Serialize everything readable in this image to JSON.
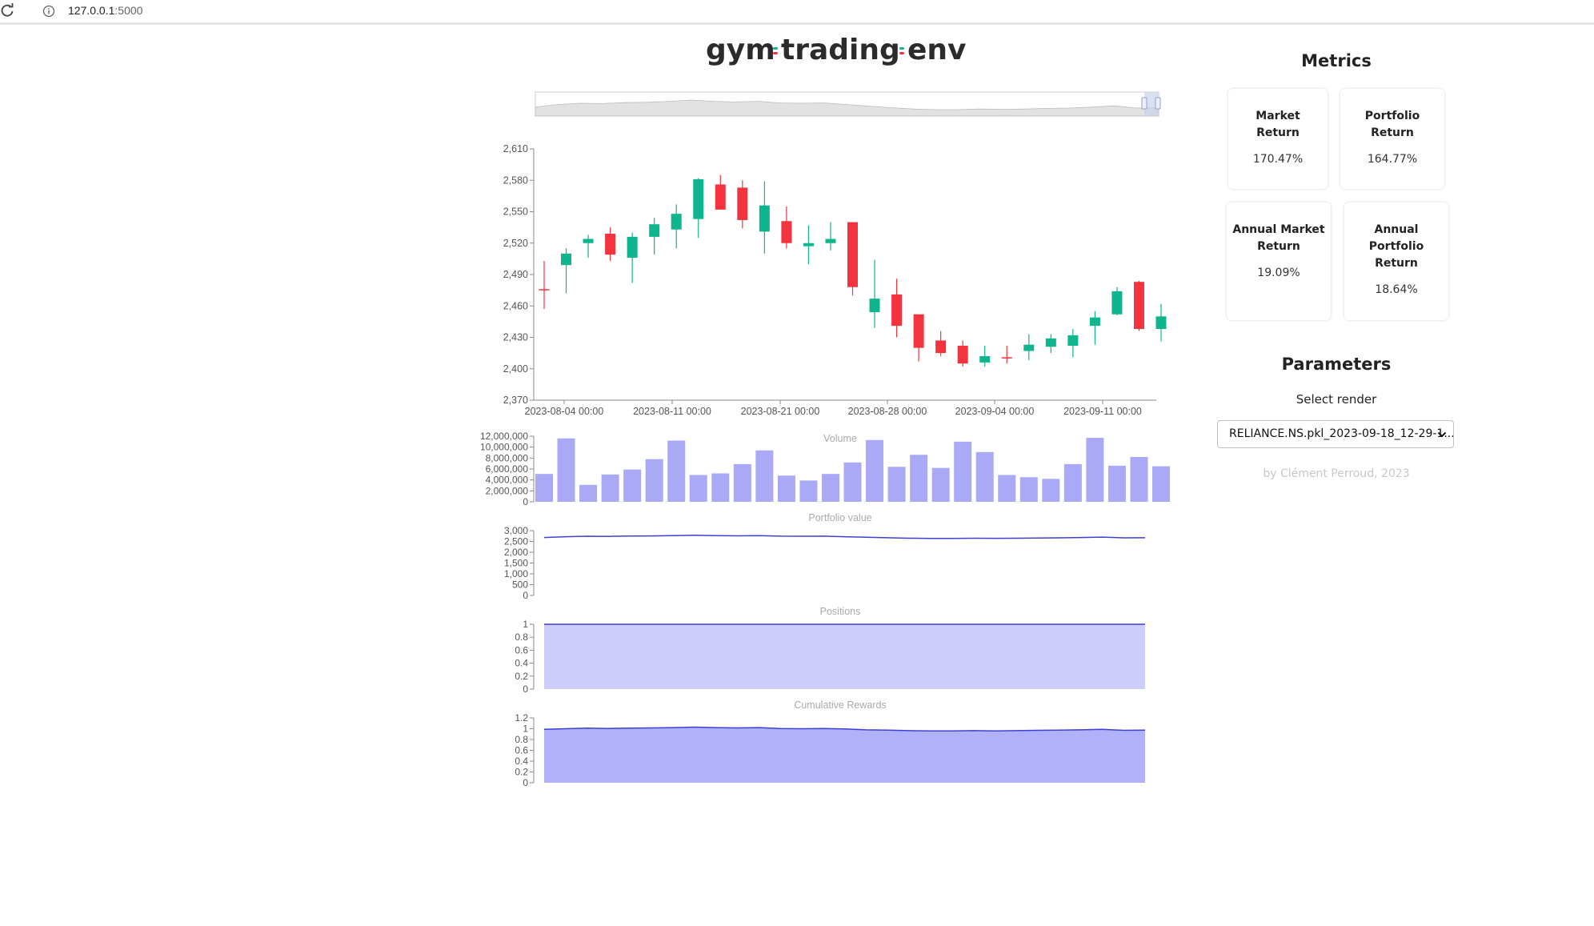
{
  "browser": {
    "url_host": "127.0.0.1",
    "url_port": ":5000"
  },
  "logo": {
    "part1": "gym",
    "part2": "trading",
    "part3": "env"
  },
  "metrics": {
    "title": "Metrics",
    "cards": [
      {
        "title_lines": [
          "Market Return"
        ],
        "value": "170.47%"
      },
      {
        "title_lines": [
          "Portfolio",
          "Return"
        ],
        "value": "164.77%"
      },
      {
        "title_lines": [
          "Annual Market",
          "Return"
        ],
        "value": "19.09%"
      },
      {
        "title_lines": [
          "Annual",
          "Portfolio",
          "Return"
        ],
        "value": "18.64%"
      }
    ]
  },
  "parameters": {
    "title": "Parameters",
    "select_label": "Select render",
    "selected_value": "RELIANCE.NS.pkl_2023-09-18_12-29-1..."
  },
  "credit": "by Clément Perroud, 2023",
  "colors": {
    "up": "#0fb58d",
    "down": "#f4333f",
    "volume": "#a9a9f5",
    "line": "#3f3fd1",
    "positions_fill": "#cdcdfa",
    "rewards_fill": "#b1b1fa",
    "overview_fill": "#e2e2e2"
  },
  "chart_data": [
    {
      "type": "candlestick",
      "ylim": [
        2370,
        2610
      ],
      "yticks": [
        "2,610",
        "2,580",
        "2,550",
        "2,520",
        "2,490",
        "2,460",
        "2,430",
        "2,400",
        "2,370"
      ],
      "xtick_labels": [
        "2023-08-04 00:00",
        "2023-08-11 00:00",
        "2023-08-21 00:00",
        "2023-08-28 00:00",
        "2023-09-04 00:00",
        "2023-09-11 00:00"
      ],
      "candles": [
        [
          2476,
          2503,
          2457,
          2475
        ],
        [
          2499,
          2515,
          2472,
          2510
        ],
        [
          2520,
          2528,
          2506,
          2524
        ],
        [
          2529,
          2535,
          2503,
          2509
        ],
        [
          2506,
          2530,
          2482,
          2526
        ],
        [
          2526,
          2544,
          2509,
          2538
        ],
        [
          2533,
          2557,
          2515,
          2548
        ],
        [
          2543,
          2582,
          2525,
          2581
        ],
        [
          2576,
          2585,
          2552,
          2552
        ],
        [
          2573,
          2580,
          2534,
          2542
        ],
        [
          2531,
          2579,
          2510,
          2556
        ],
        [
          2541,
          2555,
          2515,
          2520
        ],
        [
          2517,
          2537,
          2500,
          2520
        ],
        [
          2520,
          2540,
          2513,
          2524
        ],
        [
          2540,
          2540,
          2470,
          2478
        ],
        [
          2454,
          2504,
          2439,
          2467
        ],
        [
          2471,
          2486,
          2430,
          2441
        ],
        [
          2452,
          2452,
          2407,
          2420
        ],
        [
          2427,
          2436,
          2412,
          2415
        ],
        [
          2422,
          2427,
          2402,
          2405
        ],
        [
          2406,
          2422,
          2402,
          2412
        ],
        [
          2411,
          2422,
          2405,
          2410
        ],
        [
          2417,
          2433,
          2408,
          2423
        ],
        [
          2421,
          2433,
          2415,
          2429
        ],
        [
          2422,
          2438,
          2411,
          2432
        ],
        [
          2441,
          2455,
          2423,
          2449
        ],
        [
          2452,
          2478,
          2451,
          2474
        ],
        [
          2483,
          2484,
          2436,
          2438
        ],
        [
          2438,
          2462,
          2426,
          2450
        ]
      ]
    },
    {
      "type": "bar",
      "title": "Volume",
      "ylim": [
        0,
        12000000
      ],
      "yticks": [
        "12,000,000",
        "10,000,000",
        "8,000,000",
        "6,000,000",
        "4,000,000",
        "2,000,000",
        "0"
      ],
      "values": [
        5100000,
        11600000,
        3100000,
        5000000,
        5900000,
        7800000,
        11200000,
        4900000,
        5200000,
        6900000,
        9400000,
        4800000,
        3900000,
        5100000,
        7200000,
        11300000,
        6400000,
        8600000,
        6200000,
        11000000,
        9100000,
        4900000,
        4500000,
        4200000,
        6900000,
        11700000,
        6600000,
        8200000,
        6500000
      ]
    },
    {
      "type": "line",
      "title": "Portfolio value",
      "ylim": [
        0,
        3000
      ],
      "yticks": [
        "3,000",
        "2,500",
        "2,000",
        "1,500",
        "1,000",
        "500",
        "0"
      ],
      "values": [
        2680,
        2720,
        2740,
        2735,
        2750,
        2755,
        2770,
        2790,
        2770,
        2760,
        2770,
        2745,
        2740,
        2745,
        2720,
        2695,
        2670,
        2650,
        2640,
        2640,
        2650,
        2645,
        2650,
        2660,
        2665,
        2680,
        2700,
        2665,
        2670
      ]
    },
    {
      "type": "area",
      "title": "Positions",
      "ylim": [
        0,
        1
      ],
      "yticks": [
        "1",
        "0.8",
        "0.6",
        "0.4",
        "0.2",
        "0"
      ],
      "values": [
        1,
        1,
        1,
        1,
        1,
        1,
        1,
        1,
        1,
        1,
        1,
        1,
        1,
        1,
        1,
        1,
        1,
        1,
        1,
        1,
        1,
        1,
        1,
        1,
        1,
        1,
        1,
        1,
        1
      ]
    },
    {
      "type": "area",
      "title": "Cumulative Rewards",
      "ylim": [
        0,
        1.2
      ],
      "yticks": [
        "1.2",
        "1",
        "0.8",
        "0.6",
        "0.4",
        "0.2",
        "0"
      ],
      "values": [
        0.99,
        1.0,
        1.01,
        1.005,
        1.01,
        1.015,
        1.02,
        1.03,
        1.02,
        1.015,
        1.02,
        1.005,
        1.0,
        1.005,
        0.995,
        0.98,
        0.975,
        0.965,
        0.96,
        0.96,
        0.965,
        0.96,
        0.965,
        0.97,
        0.975,
        0.98,
        0.99,
        0.97,
        0.975
      ]
    }
  ]
}
